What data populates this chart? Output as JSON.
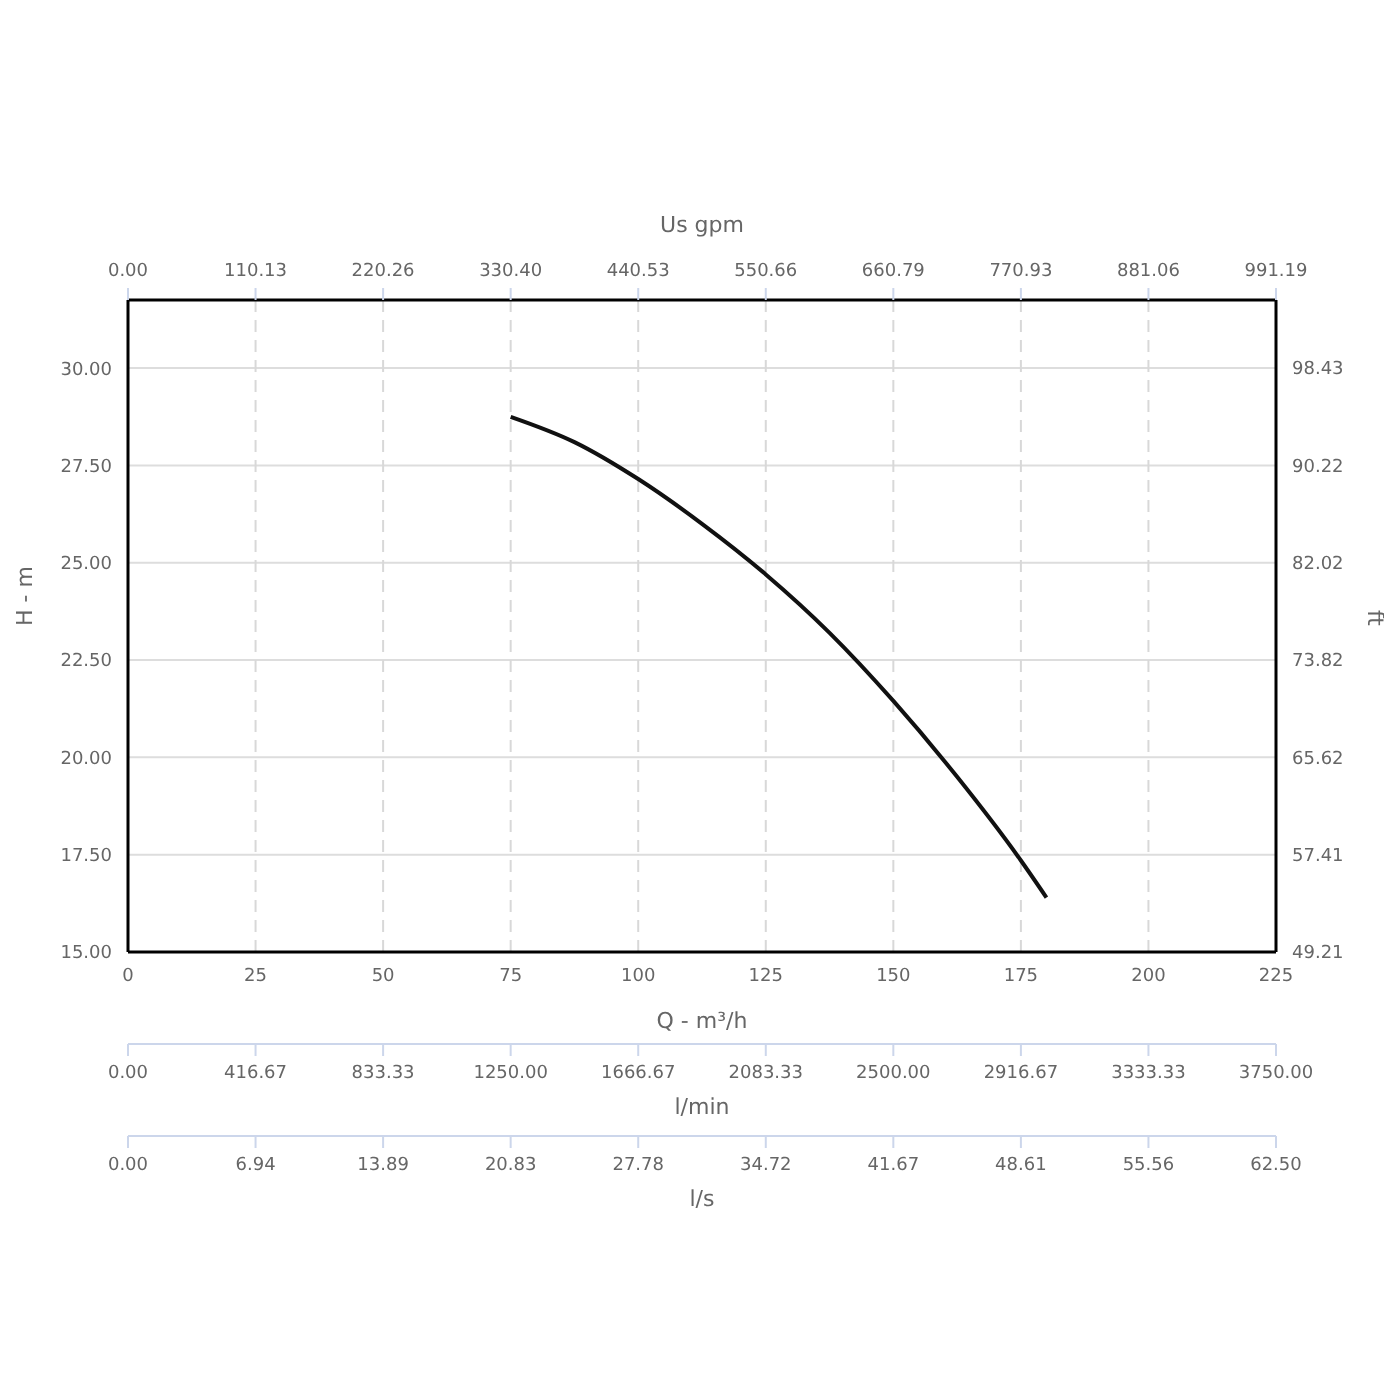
{
  "chart_data": {
    "type": "line",
    "xlabel": "Q - m³/h",
    "ylabel": "H - m",
    "y2label": "ft",
    "x2label": "Us gpm",
    "xlim": [
      0,
      225
    ],
    "xticks": [
      0,
      25,
      50,
      75,
      100,
      125,
      150,
      175,
      200,
      225
    ],
    "x2lim": [
      0,
      991.19
    ],
    "x2ticks": [
      {
        "value": 0,
        "label": "0.00"
      },
      110.13,
      220.26,
      {
        "value": 330.4,
        "label": "330.40"
      },
      440.53,
      550.66,
      660.79,
      770.93,
      881.06,
      991.19
    ],
    "ylim": [
      15,
      31.75
    ],
    "yticks": [
      {
        "value": 15,
        "label": "15.00"
      },
      {
        "value": 17.5,
        "label": "17.50"
      },
      {
        "value": 20,
        "label": "20.00"
      },
      {
        "value": 22.5,
        "label": "22.50"
      },
      {
        "value": 25,
        "label": "25.00"
      },
      {
        "value": 27.5,
        "label": "27.50"
      },
      {
        "value": 30,
        "label": "30.00"
      }
    ],
    "y2lim": [
      49.21,
      104.17
    ],
    "y2ticks": [
      49.21,
      57.41,
      65.62,
      73.82,
      82.02,
      90.22,
      98.43
    ],
    "annotations": [
      "0.00",
      "416.67",
      "833.33",
      "1250.00",
      "1666.67",
      "2083.33",
      "2500.00",
      "2916.67",
      "3333.33",
      "3750.00",
      "l/min",
      "0.00",
      "6.94",
      "13.89",
      "20.83",
      "27.78",
      "34.72",
      "41.67",
      "48.61",
      "55.56",
      "62.50",
      "l/s"
    ],
    "grid": true,
    "marker": "none",
    "line_style": "solid",
    "series": [
      {
        "color": "#111111",
        "x": [
          75,
          87.5,
          100,
          112.5,
          125,
          137.5,
          150,
          162.5,
          175,
          180
        ],
        "values": [
          28.75,
          28.1,
          27.15,
          26.0,
          24.7,
          23.2,
          21.45,
          19.5,
          17.35,
          16.4
        ]
      }
    ]
  }
}
